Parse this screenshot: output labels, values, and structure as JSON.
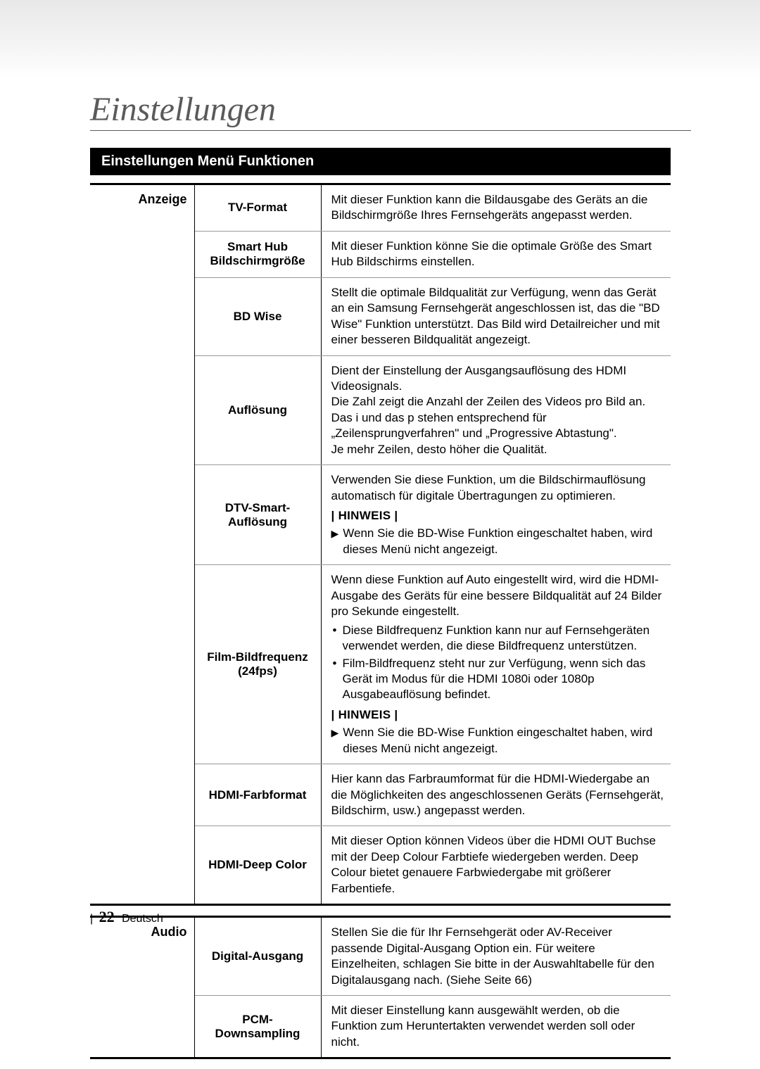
{
  "page_title": "Einstellungen",
  "section_heading": "Einstellungen Menü Funktionen",
  "hinweis_label": "| HINWEIS |",
  "groups": [
    {
      "category": "Anzeige",
      "rows": [
        {
          "label": "TV-Format",
          "desc": "Mit dieser Funktion kann die Bildausgabe des Geräts an die Bildschirmgröße Ihres Fernsehgeräts angepasst werden."
        },
        {
          "label": "Smart Hub Bildschirmgröße",
          "desc": "Mit dieser Funktion könne Sie die optimale Größe des Smart Hub Bildschirms einstellen."
        },
        {
          "label": "BD Wise",
          "desc": "Stellt die optimale Bildqualität zur Verfügung, wenn das Gerät an ein Samsung Fernsehgerät angeschlossen ist, das die \"BD Wise\" Funktion unterstützt. Das Bild wird Detailreicher und mit einer besseren Bildqualität angezeigt."
        },
        {
          "label": "Auflösung",
          "desc": "Dient der Einstellung der Ausgangsauflösung des HDMI Videosignals.\nDie Zahl zeigt die Anzahl der Zeilen des Videos pro Bild an.\nDas i und das p stehen entsprechend für „Zeilensprungverfahren\" und „Progressive Abtastung\".\nJe mehr Zeilen, desto höher die Qualität."
        },
        {
          "label": "DTV-Smart-Auflösung",
          "desc_pre": "Verwenden Sie diese Funktion, um die Bildschirmauflösung automatisch für digitale Übertragungen zu optimieren.",
          "has_hinweis": true,
          "note": "Wenn Sie die BD-Wise Funktion eingeschaltet haben, wird dieses Menü nicht angezeigt."
        },
        {
          "label": "Film-Bildfrequenz (24fps)",
          "desc_pre": "Wenn diese Funktion auf Auto eingestellt wird, wird die HDMI-Ausgabe des Geräts für eine bessere Bildqualität auf 24 Bilder pro Sekunde eingestellt.",
          "bullets": [
            "Diese Bildfrequenz Funktion kann nur auf Fernsehgeräten verwendet werden, die diese Bildfrequenz unterstützen.",
            "Film-Bildfrequenz steht nur zur Verfügung, wenn sich das Gerät im Modus für die HDMI 1080i oder 1080p Ausgabeauflösung befindet."
          ],
          "has_hinweis": true,
          "note": "Wenn Sie die BD-Wise Funktion eingeschaltet haben, wird dieses Menü nicht angezeigt."
        },
        {
          "label": "HDMI-Farbformat",
          "desc": "Hier kann das Farbraumformat für die HDMI-Wiedergabe an die Möglichkeiten des angeschlossenen Geräts (Fernsehgerät, Bildschirm, usw.) angepasst werden."
        },
        {
          "label": "HDMI-Deep Color",
          "desc": "Mit dieser Option können Videos über die HDMI OUT Buchse mit der Deep Colour Farbtiefe wiedergeben werden. Deep Colour bietet genauere Farbwiedergabe mit größerer Farbentiefe."
        }
      ]
    },
    {
      "category": "Audio",
      "rows": [
        {
          "label": "Digital-Ausgang",
          "desc": "Stellen Sie die für Ihr Fernsehgerät oder AV-Receiver passende Digital-Ausgang Option ein. Für weitere Einzelheiten, schlagen Sie bitte in der Auswahltabelle für den Digitalausgang nach. (Siehe Seite 66)"
        },
        {
          "label": "PCM-Downsampling",
          "desc": "Mit dieser Einstellung kann ausgewählt werden, ob die Funktion zum Heruntertakten verwendet werden soll oder nicht."
        }
      ]
    }
  ],
  "footer": {
    "page_number": "22",
    "lang": "Deutsch"
  }
}
